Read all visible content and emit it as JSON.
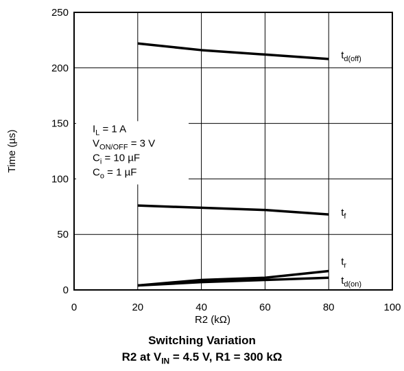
{
  "chart_data": {
    "type": "line",
    "xlabel": "R2 (kΩ)",
    "ylabel": "Time (µs)",
    "xlim": [
      0,
      100
    ],
    "ylim": [
      0,
      250
    ],
    "x_ticks": [
      "0",
      "20",
      "40",
      "60",
      "80",
      "100"
    ],
    "y_ticks": [
      "0",
      "50",
      "100",
      "150",
      "200",
      "250"
    ],
    "grid": true,
    "series": [
      {
        "name": "td(off)",
        "label_main": "t",
        "label_sub": "d(off)",
        "x": [
          20,
          40,
          60,
          80
        ],
        "y": [
          222,
          216,
          212,
          208
        ]
      },
      {
        "name": "tf",
        "label_main": "t",
        "label_sub": "f",
        "x": [
          20,
          40,
          60,
          80
        ],
        "y": [
          76,
          74,
          72,
          68
        ]
      },
      {
        "name": "tr",
        "label_main": "t",
        "label_sub": "r",
        "x": [
          20,
          40,
          60,
          80
        ],
        "y": [
          4,
          9,
          11,
          17
        ]
      },
      {
        "name": "td(on)",
        "label_main": "t",
        "label_sub": "d(on)",
        "x": [
          20,
          40,
          60,
          80
        ],
        "y": [
          4,
          7,
          9,
          11
        ]
      }
    ],
    "conditions": [
      {
        "main": "I",
        "sub": "L",
        "rest": " = 1 A"
      },
      {
        "main": "V",
        "sub": "ON/OFF",
        "rest": " = 3 V"
      },
      {
        "main": "C",
        "sub": "i",
        "rest": " = 10 µF"
      },
      {
        "main": "C",
        "sub": "o",
        "rest": " = 1 µF"
      }
    ],
    "caption": {
      "line1": "Switching Variation",
      "line2_pre": "R2 at V",
      "line2_sub": "IN",
      "line2_post": " = 4.5 V, R1 = 300 kΩ"
    }
  }
}
